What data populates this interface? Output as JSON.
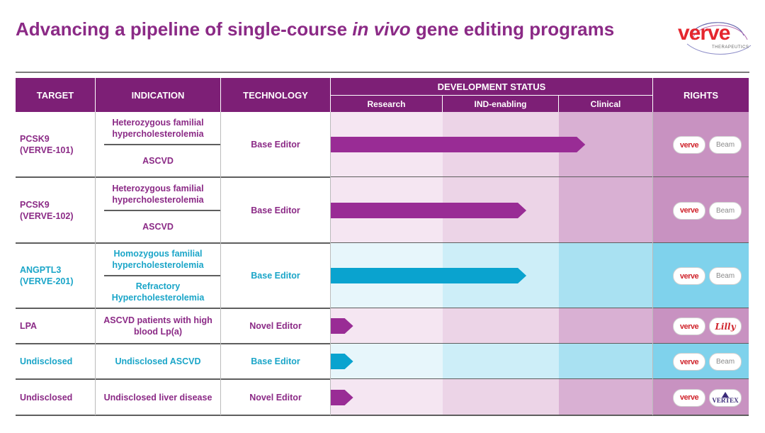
{
  "slide": {
    "title_part1": "Advancing a pipeline of single-course ",
    "title_italic": "in vivo",
    "title_part2": " gene editing programs"
  },
  "logo": {
    "word": "verve",
    "sub": "THERAPEUTICS",
    "color": "#e5262e"
  },
  "colors": {
    "header": "#7d1f76",
    "magenta_arrow": "#992c95",
    "teal_arrow": "#0aa3cf",
    "magenta_text": "#8b2a86",
    "teal_text": "#1aa5c8",
    "research_band_magenta": "#f5e6f2",
    "ind_band_magenta": "#ecd4e7",
    "clinical_band_magenta": "#d9b0d3",
    "rights_band_magenta": "#c892c1",
    "research_band_teal": "#e7f6fb",
    "ind_band_teal": "#cdeef8",
    "clinical_band_teal": "#a9e1f2",
    "rights_band_teal": "#7fd2ec"
  },
  "headers": {
    "target": "TARGET",
    "indication": "INDICATION",
    "technology": "TECHNOLOGY",
    "dev_status": "DEVELOPMENT STATUS",
    "research": "Research",
    "ind": "IND-enabling",
    "clinical": "Clinical",
    "rights": "RIGHTS"
  },
  "chart_data": {
    "type": "table",
    "stages": [
      "Research",
      "IND-enabling",
      "Clinical"
    ],
    "rows": [
      {
        "target_line1": "PCSK9",
        "target_line2": "(VERVE-101)",
        "indication_a": "Heterozygous familial hypercholesterolemia",
        "indication_b": "ASCVD",
        "technology": "Base Editor",
        "progress": 2.28,
        "theme": "magenta",
        "rights": [
          "verve",
          "Beam"
        ]
      },
      {
        "target_line1": "PCSK9",
        "target_line2": "(VERVE-102)",
        "indication_a": "Heterozygous familial hypercholesterolemia",
        "indication_b": "ASCVD",
        "technology": "Base Editor",
        "progress": 1.72,
        "theme": "magenta",
        "rights": [
          "verve",
          "Beam"
        ]
      },
      {
        "target_line1": "ANGPTL3",
        "target_line2": "(VERVE-201)",
        "indication_a": "Homozygous familial hypercholesterolemia",
        "indication_b": "Refractory Hypercholesterolemia",
        "technology": "Base Editor",
        "progress": 1.72,
        "theme": "teal",
        "rights": [
          "verve",
          "Beam"
        ]
      },
      {
        "target_line1": "LPA",
        "target_line2": "",
        "indication_a": "ASCVD patients with high blood Lp(a)",
        "indication_b": "",
        "technology": "Novel Editor",
        "progress": 0.2,
        "theme": "magenta",
        "rights": [
          "verve",
          "Lilly"
        ]
      },
      {
        "target_line1": "Undisclosed",
        "target_line2": "",
        "indication_a": "Undisclosed ASCVD",
        "indication_b": "",
        "technology": "Base Editor",
        "progress": 0.2,
        "theme": "teal",
        "rights": [
          "verve",
          "Beam"
        ]
      },
      {
        "target_line1": "Undisclosed",
        "target_line2": "",
        "indication_a": "Undisclosed liver disease",
        "indication_b": "",
        "technology": "Novel Editor",
        "progress": 0.2,
        "theme": "magenta",
        "rights": [
          "verve",
          "VERTEX"
        ]
      }
    ]
  }
}
